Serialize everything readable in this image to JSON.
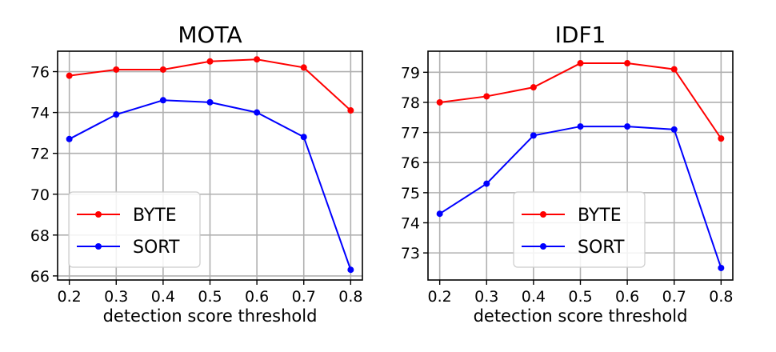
{
  "chart_data": [
    {
      "type": "line",
      "title": "MOTA",
      "xlabel": "detection score threshold",
      "ylabel": "",
      "x": [
        0.2,
        0.3,
        0.4,
        0.5,
        0.6,
        0.7,
        0.8
      ],
      "x_ticks": [
        "0.2",
        "0.3",
        "0.4",
        "0.5",
        "0.6",
        "0.7",
        "0.8"
      ],
      "xlim": [
        0.175,
        0.825
      ],
      "y_ticks": [
        "66",
        "68",
        "70",
        "72",
        "74",
        "76"
      ],
      "y_tick_values": [
        66,
        68,
        70,
        72,
        74,
        76
      ],
      "ylim": [
        65.8,
        77.0
      ],
      "grid": true,
      "legend": "lower-left",
      "series": [
        {
          "name": "BYTE",
          "color": "#ff0000",
          "values": [
            75.8,
            76.1,
            76.1,
            76.5,
            76.6,
            76.2,
            74.1
          ]
        },
        {
          "name": "SORT",
          "color": "#0000ff",
          "values": [
            72.7,
            73.9,
            74.6,
            74.5,
            74.0,
            72.8,
            66.3
          ]
        }
      ]
    },
    {
      "type": "line",
      "title": "IDF1",
      "xlabel": "detection score threshold",
      "ylabel": "",
      "x": [
        0.2,
        0.3,
        0.4,
        0.5,
        0.6,
        0.7,
        0.8
      ],
      "x_ticks": [
        "0.2",
        "0.3",
        "0.4",
        "0.5",
        "0.6",
        "0.7",
        "0.8"
      ],
      "xlim": [
        0.175,
        0.825
      ],
      "y_ticks": [
        "73",
        "74",
        "75",
        "76",
        "77",
        "78",
        "79"
      ],
      "y_tick_values": [
        73,
        74,
        75,
        76,
        77,
        78,
        79
      ],
      "ylim": [
        72.1,
        79.7
      ],
      "grid": true,
      "legend": "lower-right",
      "series": [
        {
          "name": "BYTE",
          "color": "#ff0000",
          "values": [
            78.0,
            78.2,
            78.5,
            79.3,
            79.3,
            79.1,
            76.8
          ]
        },
        {
          "name": "SORT",
          "color": "#0000ff",
          "values": [
            74.3,
            75.3,
            76.9,
            77.2,
            77.2,
            77.1,
            72.5
          ]
        }
      ]
    }
  ]
}
